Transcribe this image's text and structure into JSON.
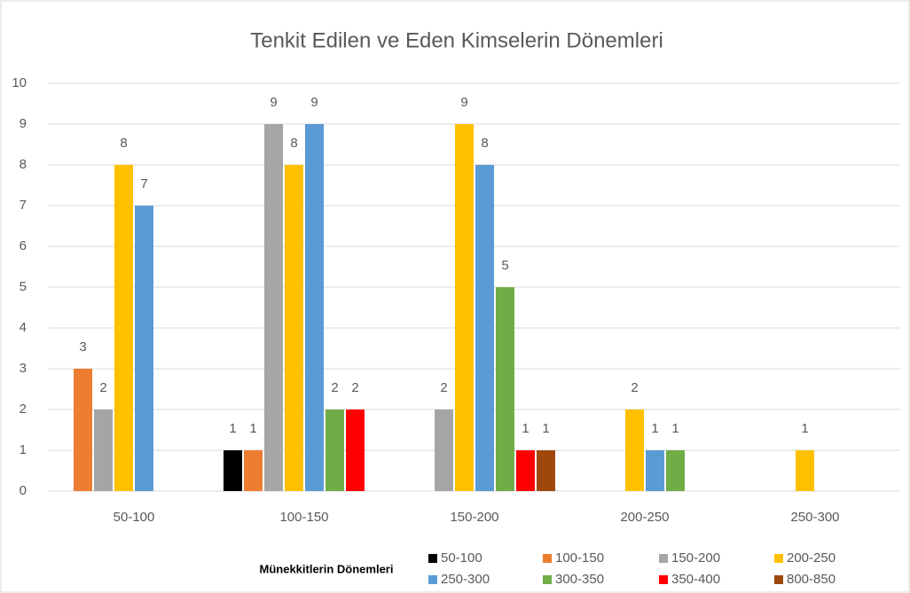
{
  "chart_data": {
    "type": "bar",
    "title": "Tenkit Edilen ve Eden Kimselerin Dönemleri",
    "legend_title": "Münekkitlerin Dönemleri",
    "categories": [
      "50-100",
      "100-150",
      "150-200",
      "200-250",
      "250-300"
    ],
    "series": [
      {
        "name": "50-100",
        "color": "#000000",
        "values": [
          null,
          1,
          null,
          null,
          null
        ]
      },
      {
        "name": "100-150",
        "color": "#ed7d31",
        "values": [
          3,
          1,
          null,
          null,
          null
        ]
      },
      {
        "name": "150-200",
        "color": "#a5a5a5",
        "values": [
          2,
          9,
          2,
          null,
          null
        ]
      },
      {
        "name": "200-250",
        "color": "#ffc000",
        "values": [
          8,
          8,
          9,
          2,
          1
        ]
      },
      {
        "name": "250-300",
        "color": "#5b9bd5",
        "values": [
          7,
          9,
          8,
          1,
          null
        ]
      },
      {
        "name": "300-350",
        "color": "#70ad47",
        "values": [
          null,
          2,
          5,
          1,
          null
        ]
      },
      {
        "name": "350-400",
        "color": "#ff0000",
        "values": [
          null,
          2,
          1,
          null,
          null
        ]
      },
      {
        "name": "800-850",
        "color": "#9e480e",
        "values": [
          null,
          null,
          1,
          null,
          null
        ]
      }
    ],
    "ylim": [
      0,
      10
    ],
    "yticks": [
      0,
      1,
      2,
      3,
      4,
      5,
      6,
      7,
      8,
      9,
      10
    ],
    "grid": true,
    "legend": "bottom"
  }
}
